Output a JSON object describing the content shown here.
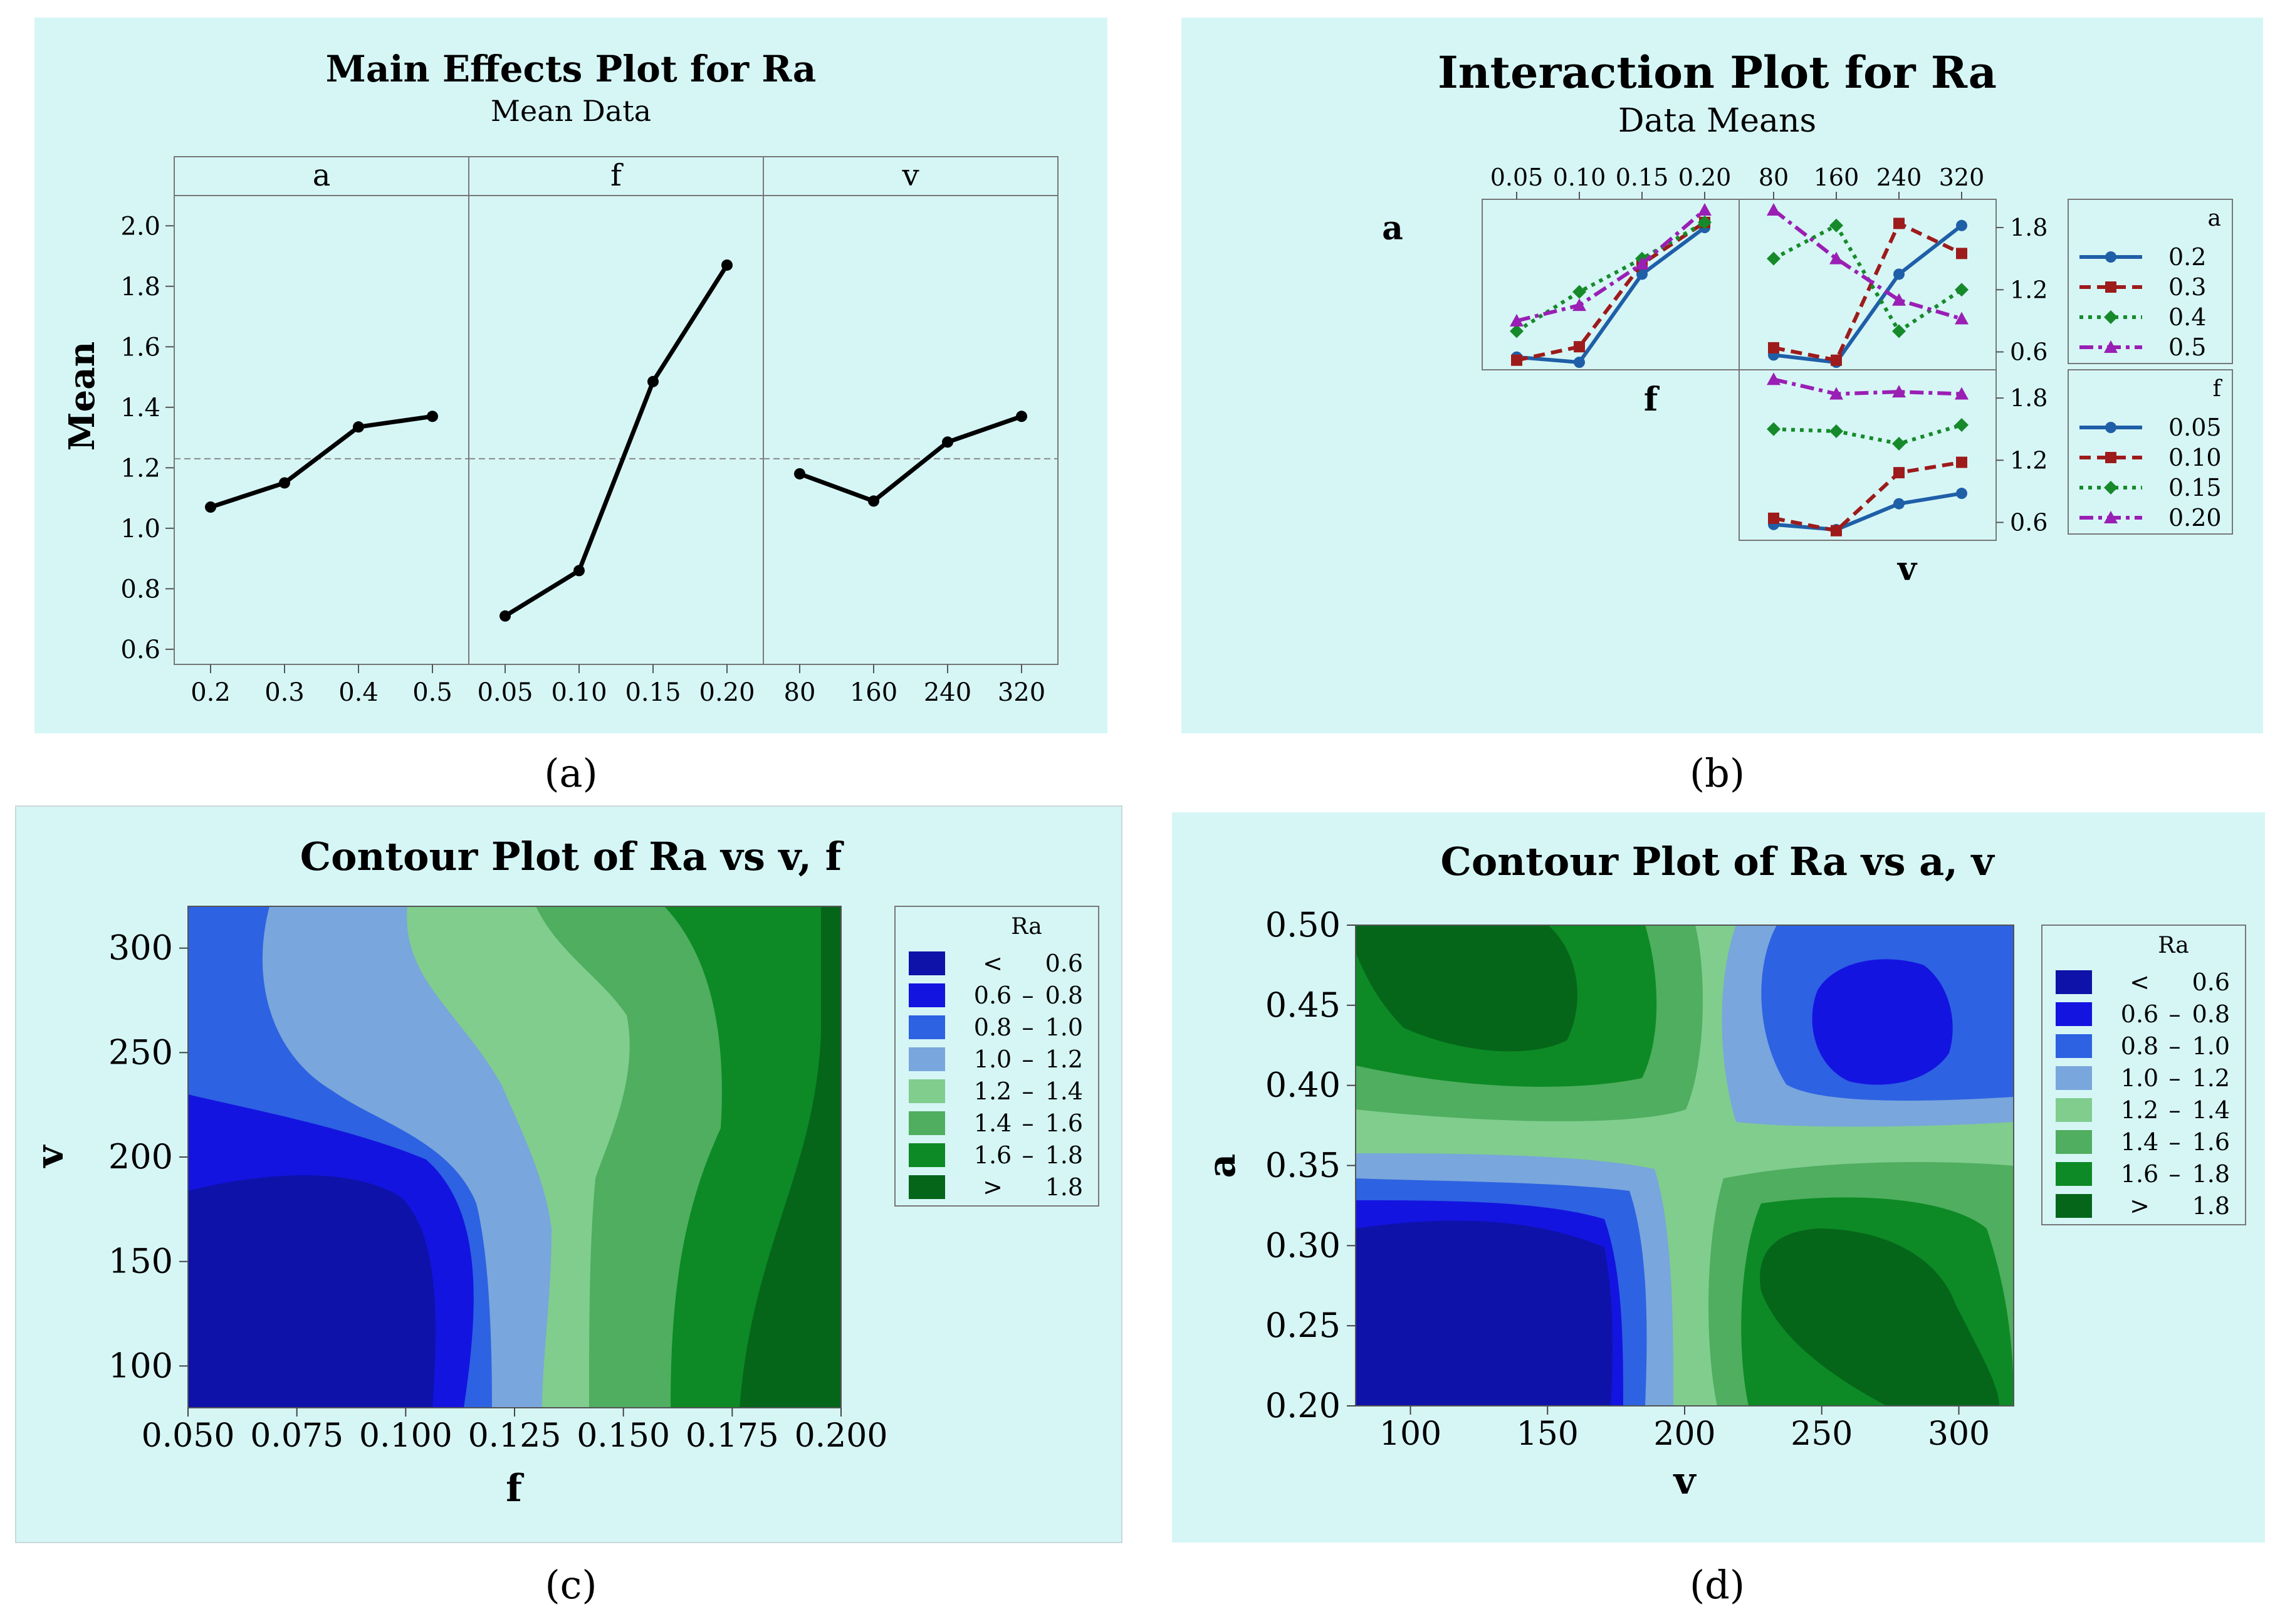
{
  "panels": {
    "a": {
      "caption": "(a)"
    },
    "b": {
      "caption": "(b)"
    },
    "c": {
      "caption": "(c)"
    },
    "d": {
      "caption": "(d)"
    }
  },
  "colors": {
    "panel_bg": "#d6f6f6",
    "line": "#000000",
    "mean_ref": "#888888",
    "series": [
      "#1f5fa8",
      "#9e1b1b",
      "#168a2a",
      "#9a1fb4"
    ],
    "contour": [
      "#0e12a8",
      "#1414e0",
      "#2d62e2",
      "#79a6dc",
      "#80cd8e",
      "#4fae5f",
      "#0d8a25",
      "#05661a"
    ]
  },
  "chart_data": [
    {
      "type": "line",
      "title": "Main Effects Plot for Ra",
      "subtitle": "Mean Data",
      "ylabel": "Mean",
      "ylim": [
        0.55,
        2.1
      ],
      "yticks": [
        0.6,
        0.8,
        1.0,
        1.2,
        1.4,
        1.6,
        1.8,
        2.0
      ],
      "ytick_labels": [
        "0.6",
        "0.8",
        "1.0",
        "1.2",
        "1.4",
        "1.6",
        "1.8",
        "2.0"
      ],
      "grand_mean": 1.23,
      "facets": [
        {
          "label": "a",
          "categories": [
            "0.2",
            "0.3",
            "0.4",
            "0.5"
          ],
          "values": [
            1.07,
            1.15,
            1.335,
            1.37
          ]
        },
        {
          "label": "f",
          "categories": [
            "0.05",
            "0.10",
            "0.15",
            "0.20"
          ],
          "values": [
            0.71,
            0.86,
            1.485,
            1.87
          ]
        },
        {
          "label": "v",
          "categories": [
            "80",
            "160",
            "240",
            "320"
          ],
          "values": [
            1.18,
            1.09,
            1.285,
            1.37
          ]
        }
      ]
    },
    {
      "type": "line",
      "title": "Interaction Plot for Ra",
      "subtitle": "Data Means",
      "row_labels": [
        "a",
        "f"
      ],
      "col_labels": [
        "f",
        "v"
      ],
      "top_ticks_f": [
        "0.05",
        "0.10",
        "0.15",
        "0.20"
      ],
      "top_ticks_v": [
        "80",
        "160",
        "240",
        "320"
      ],
      "right_ticks": [
        "1.8",
        "1.2",
        "0.6"
      ],
      "ylim": [
        0.5,
        2.0
      ],
      "legends": [
        {
          "title": "a",
          "entries": [
            "0.2",
            "0.3",
            "0.4",
            "0.5"
          ]
        },
        {
          "title": "f",
          "entries": [
            "0.05",
            "0.10",
            "0.15",
            "0.20"
          ]
        }
      ],
      "a_by_f": [
        {
          "name": "0.2",
          "values": [
            0.55,
            0.5,
            1.35,
            1.8
          ]
        },
        {
          "name": "0.3",
          "values": [
            0.52,
            0.65,
            1.45,
            1.85
          ]
        },
        {
          "name": "0.4",
          "values": [
            0.8,
            1.18,
            1.5,
            1.85
          ]
        },
        {
          "name": "0.5",
          "values": [
            0.9,
            1.05,
            1.45,
            1.97
          ]
        }
      ],
      "a_by_v": [
        {
          "name": "0.2",
          "values": [
            0.57,
            0.5,
            1.35,
            1.82
          ]
        },
        {
          "name": "0.3",
          "values": [
            0.64,
            0.52,
            1.84,
            1.55
          ]
        },
        {
          "name": "0.4",
          "values": [
            1.5,
            1.82,
            0.8,
            1.2
          ]
        },
        {
          "name": "0.5",
          "values": [
            1.97,
            1.5,
            1.1,
            0.92
          ]
        }
      ],
      "f_by_v": [
        {
          "name": "0.05",
          "values": [
            0.58,
            0.53,
            0.78,
            0.88
          ]
        },
        {
          "name": "0.10",
          "values": [
            0.64,
            0.52,
            1.08,
            1.18
          ]
        },
        {
          "name": "0.15",
          "values": [
            1.5,
            1.48,
            1.36,
            1.54
          ]
        },
        {
          "name": "0.20",
          "values": [
            1.98,
            1.84,
            1.86,
            1.84
          ]
        }
      ]
    },
    {
      "type": "heatmap",
      "title": "Contour Plot of Ra vs v, f",
      "xlabel": "f",
      "ylabel": "v",
      "xlim": [
        0.05,
        0.2
      ],
      "ylim": [
        80,
        320
      ],
      "xticks": [
        "0.050",
        "0.075",
        "0.100",
        "0.125",
        "0.150",
        "0.175",
        "0.200"
      ],
      "yticks": [
        "300",
        "250",
        "200",
        "150",
        "100"
      ],
      "legend": {
        "title": "Ra",
        "entries": [
          {
            "lo": "<",
            "hi": "0.6",
            "dash": ""
          },
          {
            "lo": "0.6",
            "hi": "0.8",
            "dash": "–"
          },
          {
            "lo": "0.8",
            "hi": "1.0",
            "dash": "–"
          },
          {
            "lo": "1.0",
            "hi": "1.2",
            "dash": "–"
          },
          {
            "lo": "1.2",
            "hi": "1.4",
            "dash": "–"
          },
          {
            "lo": "1.4",
            "hi": "1.6",
            "dash": "–"
          },
          {
            "lo": "1.6",
            "hi": "1.8",
            "dash": "–"
          },
          {
            "lo": ">",
            "hi": "1.8",
            "dash": ""
          }
        ]
      }
    },
    {
      "type": "heatmap",
      "title": "Contour Plot of Ra vs a, v",
      "xlabel": "v",
      "ylabel": "a",
      "xlim": [
        80,
        320
      ],
      "ylim": [
        0.2,
        0.5
      ],
      "xticks": [
        "100",
        "150",
        "200",
        "250",
        "300"
      ],
      "yticks": [
        "0.50",
        "0.45",
        "0.40",
        "0.35",
        "0.30",
        "0.25",
        "0.20"
      ],
      "legend": {
        "title": "Ra",
        "entries": [
          {
            "lo": "<",
            "hi": "0.6",
            "dash": ""
          },
          {
            "lo": "0.6",
            "hi": "0.8",
            "dash": "–"
          },
          {
            "lo": "0.8",
            "hi": "1.0",
            "dash": "–"
          },
          {
            "lo": "1.0",
            "hi": "1.2",
            "dash": "–"
          },
          {
            "lo": "1.2",
            "hi": "1.4",
            "dash": "–"
          },
          {
            "lo": "1.4",
            "hi": "1.6",
            "dash": "–"
          },
          {
            "lo": "1.6",
            "hi": "1.8",
            "dash": "–"
          },
          {
            "lo": ">",
            "hi": "1.8",
            "dash": ""
          }
        ]
      }
    }
  ]
}
